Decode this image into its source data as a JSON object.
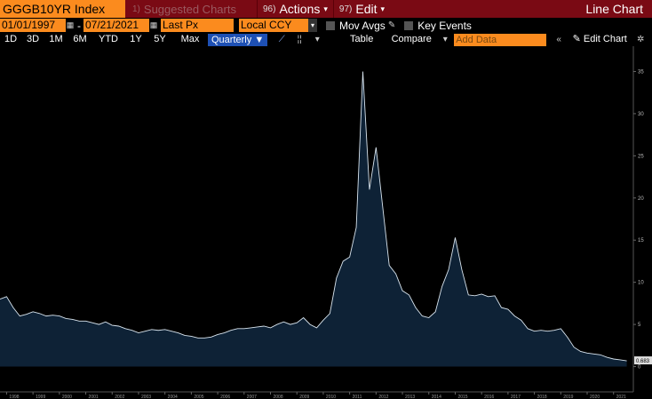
{
  "header": {
    "ticker": "GGGB10YR Index",
    "suggested_num": "1) ",
    "suggested_label": "Suggested Charts",
    "actions_num": "96)",
    "actions_label": "Actions",
    "edit_num": "97)",
    "edit_label": "Edit",
    "chart_type": "Line Chart"
  },
  "params": {
    "start_date": "01/01/1997",
    "end_date": "07/21/2021",
    "date_separator": "-",
    "field": "Last Px",
    "currency": "Local CCY",
    "mov_avgs_label": "Mov Avgs",
    "key_events_label": "Key Events"
  },
  "toolbar": {
    "ranges": [
      "1D",
      "3D",
      "1M",
      "6M",
      "YTD",
      "1Y",
      "5Y",
      "Max"
    ],
    "frequency": "Quarterly",
    "table_label": "Table",
    "compare_label": "Compare",
    "add_data_placeholder": "Add Data",
    "edit_chart_label": "Edit Chart"
  },
  "colors": {
    "bloomberg_orange": "#fb8b1e",
    "title_bar": "#7a0a14",
    "selected_blue": "#1e50b4",
    "area_fill": "#0e2236",
    "line": "#d8e4ee"
  },
  "chart_data": {
    "type": "area",
    "title": "",
    "xlabel": "",
    "ylabel": "",
    "ylim": [
      -3,
      38
    ],
    "xlim": [
      1997.75,
      2021.75
    ],
    "y_ticks": [
      0,
      5,
      10,
      15,
      20,
      25,
      30,
      35
    ],
    "x_tick_labels": [
      "1998",
      "1999",
      "2000",
      "2001",
      "2002",
      "2003",
      "2004",
      "2005",
      "2006",
      "2007",
      "2008",
      "2009",
      "2010",
      "2011",
      "2012",
      "2013",
      "2014",
      "2015",
      "2016",
      "2017",
      "2018",
      "2019",
      "2020",
      "2021"
    ],
    "last_value_label": "0.683",
    "series": [
      {
        "x": [
          1997.75,
          1998.0,
          1998.25,
          1998.5,
          1998.75,
          1999.0,
          1999.25,
          1999.5,
          1999.75,
          2000.0,
          2000.25,
          2000.5,
          2000.75,
          2001.0,
          2001.25,
          2001.5,
          2001.75,
          2002.0,
          2002.25,
          2002.5,
          2002.75,
          2003.0,
          2003.25,
          2003.5,
          2003.75,
          2004.0,
          2004.25,
          2004.5,
          2004.75,
          2005.0,
          2005.25,
          2005.5,
          2005.75,
          2006.0,
          2006.25,
          2006.5,
          2006.75,
          2007.0,
          2007.25,
          2007.5,
          2007.75,
          2008.0,
          2008.25,
          2008.5,
          2008.75,
          2009.0,
          2009.25,
          2009.5,
          2009.75,
          2010.0,
          2010.25,
          2010.5,
          2010.75,
          2011.0,
          2011.25,
          2011.5,
          2011.75,
          2012.0,
          2012.25,
          2012.5,
          2012.75,
          2013.0,
          2013.25,
          2013.5,
          2013.75,
          2014.0,
          2014.25,
          2014.5,
          2014.75,
          2015.0,
          2015.25,
          2015.5,
          2015.75,
          2016.0,
          2016.25,
          2016.5,
          2016.75,
          2017.0,
          2017.25,
          2017.5,
          2017.75,
          2018.0,
          2018.25,
          2018.5,
          2018.75,
          2019.0,
          2019.25,
          2019.5,
          2019.75,
          2020.0,
          2020.25,
          2020.5,
          2020.75,
          2021.0,
          2021.25,
          2021.5
        ],
        "values": [
          8.0,
          8.3,
          7.0,
          6.0,
          6.2,
          6.5,
          6.3,
          6.0,
          6.1,
          6.0,
          5.7,
          5.6,
          5.4,
          5.4,
          5.2,
          5.0,
          5.3,
          4.9,
          4.8,
          4.5,
          4.3,
          4.0,
          4.2,
          4.4,
          4.3,
          4.4,
          4.2,
          4.0,
          3.7,
          3.6,
          3.4,
          3.4,
          3.5,
          3.8,
          4.0,
          4.3,
          4.5,
          4.5,
          4.6,
          4.7,
          4.8,
          4.6,
          5.0,
          5.3,
          5.0,
          5.2,
          5.8,
          5.0,
          4.6,
          5.5,
          6.3,
          10.5,
          12.5,
          13.0,
          16.5,
          35.0,
          21.0,
          26.0,
          19.0,
          12.0,
          11.0,
          9.0,
          8.5,
          7.0,
          6.0,
          5.8,
          6.5,
          9.5,
          11.5,
          15.3,
          11.5,
          8.5,
          8.4,
          8.6,
          8.3,
          8.4,
          7.0,
          6.8,
          6.0,
          5.5,
          4.5,
          4.2,
          4.3,
          4.2,
          4.3,
          4.5,
          3.5,
          2.3,
          1.8,
          1.6,
          1.5,
          1.4,
          1.1,
          0.9,
          0.8,
          0.683
        ]
      }
    ]
  }
}
